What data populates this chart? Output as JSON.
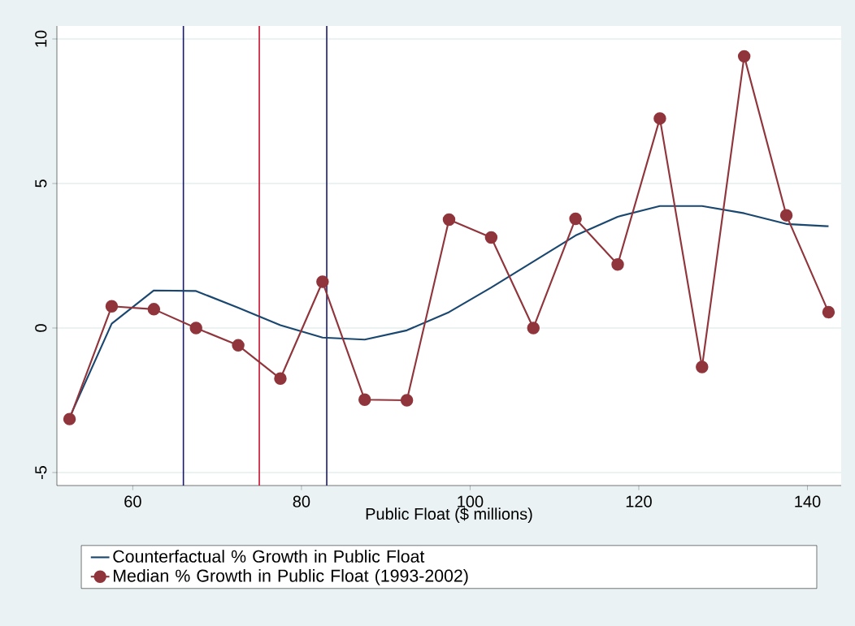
{
  "chart_data": {
    "type": "line",
    "xlabel": "Public Float ($ millions)",
    "x": [
      52.5,
      57.5,
      62.5,
      67.5,
      72.5,
      77.5,
      82.5,
      87.5,
      92.5,
      97.5,
      102.5,
      107.5,
      112.5,
      117.5,
      122.5,
      127.5,
      132.5,
      137.5,
      142.5
    ],
    "series": [
      {
        "name": "Counterfactual % Growth in Public Float",
        "color": "#1a476f",
        "marker": "none",
        "values": [
          -3.1,
          0.15,
          1.3,
          1.28,
          0.7,
          0.1,
          -0.33,
          -0.4,
          -0.08,
          0.55,
          1.4,
          2.3,
          3.2,
          3.85,
          4.22,
          4.22,
          3.97,
          3.6,
          3.52
        ]
      },
      {
        "name": "Median % Growth in Public Float (1993-2002)",
        "color": "#90353b",
        "marker": "circle",
        "values": [
          -3.15,
          0.75,
          0.65,
          0,
          -0.6,
          -1.75,
          1.6,
          -2.48,
          -2.5,
          3.75,
          3.13,
          0,
          3.78,
          2.2,
          7.25,
          -1.35,
          9.4,
          3.9,
          0.55
        ]
      }
    ],
    "xlim": [
      51,
      144
    ],
    "ylim": [
      -5.45,
      10.45
    ],
    "xticks": [
      60,
      80,
      100,
      120,
      140
    ],
    "yticks": [
      -5,
      0,
      5,
      10
    ],
    "ref_lines": [
      {
        "axis": "x",
        "value": 66,
        "color": "#1a1a6e"
      },
      {
        "axis": "x",
        "value": 75,
        "color": "#c8102e"
      },
      {
        "axis": "x",
        "value": 83,
        "color": "#1a1a6e"
      }
    ],
    "grid": "y",
    "legend": "bottom",
    "line_style": "solid"
  }
}
